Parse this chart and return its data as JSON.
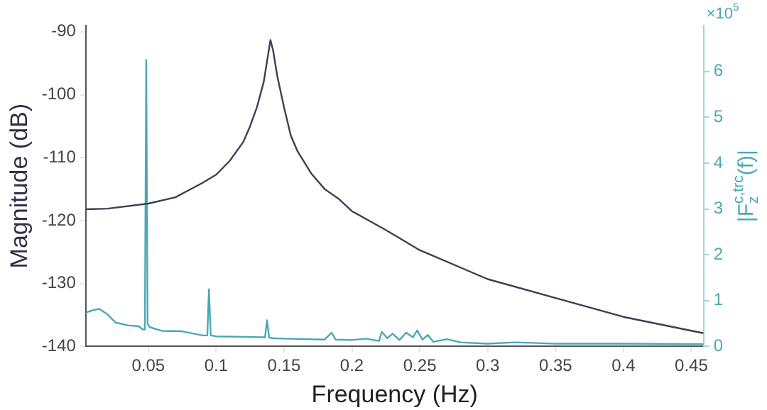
{
  "chart_data": {
    "type": "line",
    "xlabel": "Frequency (Hz)",
    "ylabel": "Magnitude (dB)",
    "y2label": "|F$_{z}$$^{c,trc}$(f)|",
    "annotations": [
      "×10$^{5}$"
    ],
    "xlim": [
      0.004,
      0.459
    ],
    "xticks": [
      0.05,
      0.1,
      0.15,
      0.2,
      0.25,
      0.3,
      0.35,
      0.4,
      0.45
    ],
    "ylim": [
      -140,
      -89
    ],
    "yticks": [
      -140,
      -130,
      -120,
      -110,
      -100,
      -90
    ],
    "y2lim": [
      0,
      7
    ],
    "y2ticks": [
      0,
      1,
      2,
      3,
      4,
      5,
      6
    ],
    "grid": false,
    "legend": false,
    "marker": "none",
    "line_style": "solid",
    "series": [
      {
        "color": "#3c3f58",
        "x": [
          0.004,
          0.02,
          0.05,
          0.07,
          0.09,
          0.1,
          0.11,
          0.12,
          0.125,
          0.13,
          0.135,
          0.138,
          0.14,
          0.142,
          0.145,
          0.15,
          0.155,
          0.16,
          0.17,
          0.18,
          0.19,
          0.2,
          0.225,
          0.25,
          0.3,
          0.35,
          0.4,
          0.459
        ],
        "values": [
          -118.2,
          -118.1,
          -117.3,
          -116.3,
          -114,
          -112.7,
          -110.5,
          -107.5,
          -105,
          -102,
          -98,
          -94,
          -91.3,
          -93,
          -97,
          -102,
          -106.5,
          -109,
          -112.5,
          -115,
          -116.5,
          -118.5,
          -121.5,
          -124.7,
          -129.3,
          -132.3,
          -135.3,
          -137.9
        ]
      },
      {
        "color": "#4aa8b4",
        "axis": "y2",
        "x": [
          0.004,
          0.008,
          0.014,
          0.02,
          0.026,
          0.035,
          0.043,
          0.046,
          0.0475,
          0.0485,
          0.0495,
          0.051,
          0.06,
          0.075,
          0.09,
          0.0935,
          0.0947,
          0.096,
          0.1,
          0.12,
          0.136,
          0.1375,
          0.139,
          0.1405,
          0.15,
          0.18,
          0.185,
          0.188,
          0.2,
          0.21,
          0.22,
          0.222,
          0.226,
          0.23,
          0.235,
          0.24,
          0.245,
          0.248,
          0.252,
          0.256,
          0.26,
          0.27,
          0.28,
          0.3,
          0.32,
          0.35,
          0.4,
          0.459
        ],
        "values": [
          0.74,
          0.78,
          0.82,
          0.7,
          0.52,
          0.46,
          0.44,
          0.37,
          0.37,
          6.25,
          0.5,
          0.42,
          0.34,
          0.33,
          0.24,
          0.24,
          1.25,
          0.24,
          0.22,
          0.21,
          0.2,
          0.57,
          0.2,
          0.18,
          0.17,
          0.15,
          0.3,
          0.15,
          0.14,
          0.17,
          0.12,
          0.32,
          0.18,
          0.28,
          0.14,
          0.3,
          0.2,
          0.35,
          0.15,
          0.25,
          0.1,
          0.16,
          0.09,
          0.06,
          0.09,
          0.06,
          0.06,
          0.05
        ]
      }
    ]
  }
}
